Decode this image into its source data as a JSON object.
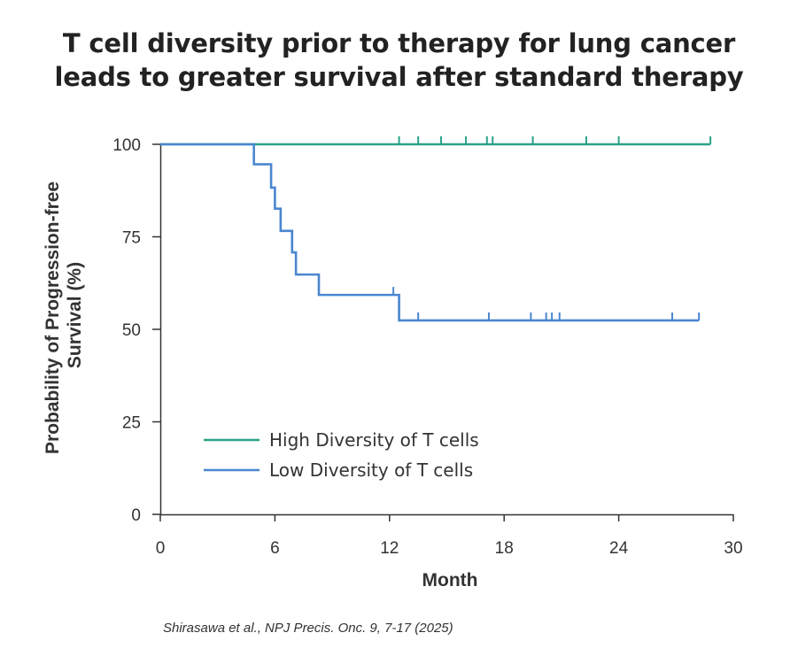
{
  "title": {
    "line1": "T cell diversity prior to therapy for lung cancer",
    "line2": "leads to greater survival after standard therapy"
  },
  "citation": "Shirasawa et al., NPJ Precis. Onc. 9, 7-17 (2025)",
  "chart_data": {
    "type": "line",
    "subtype": "kaplan-meier step",
    "xlabel": "Month",
    "ylabel_line1": "Probability of Progression-free",
    "ylabel_line2": "Survival (%)",
    "xlim": [
      0,
      30
    ],
    "ylim": [
      0,
      100
    ],
    "xticks": [
      0,
      6,
      12,
      18,
      24,
      30
    ],
    "yticks": [
      0,
      25,
      50,
      75,
      100
    ],
    "xtick_labels": [
      "0",
      "6",
      "12",
      "18",
      "24",
      "30"
    ],
    "ytick_labels": [
      "0",
      "25",
      "50",
      "75",
      "100"
    ],
    "grid": false,
    "legend_position": "bottom-left",
    "series": [
      {
        "name": "High Diversity of T cells",
        "color": "#2aa288",
        "steps": [
          [
            0,
            100
          ],
          [
            28.8,
            100
          ]
        ],
        "censor_marks": [
          [
            12.5,
            100
          ],
          [
            13.5,
            100
          ],
          [
            14.7,
            100
          ],
          [
            16.0,
            100
          ],
          [
            17.1,
            100
          ],
          [
            17.4,
            100
          ],
          [
            19.5,
            100
          ],
          [
            22.3,
            100
          ],
          [
            24.0,
            100
          ],
          [
            28.8,
            100
          ]
        ]
      },
      {
        "name": "Low Diversity of T cells",
        "color": "#4a86d0",
        "steps": [
          [
            0,
            100
          ],
          [
            4.9,
            94.6
          ],
          [
            5.8,
            88.3
          ],
          [
            6.0,
            82.6
          ],
          [
            6.3,
            76.6
          ],
          [
            6.9,
            70.8
          ],
          [
            7.1,
            64.8
          ],
          [
            8.3,
            59.3
          ],
          [
            12.5,
            52.4
          ],
          [
            28.2,
            52.4
          ]
        ],
        "censor_marks": [
          [
            12.2,
            59.3
          ],
          [
            13.5,
            52.4
          ],
          [
            17.2,
            52.4
          ],
          [
            19.4,
            52.4
          ],
          [
            20.2,
            52.4
          ],
          [
            20.5,
            52.4
          ],
          [
            20.9,
            52.4
          ],
          [
            26.8,
            52.4
          ],
          [
            28.2,
            52.4
          ]
        ]
      }
    ]
  }
}
